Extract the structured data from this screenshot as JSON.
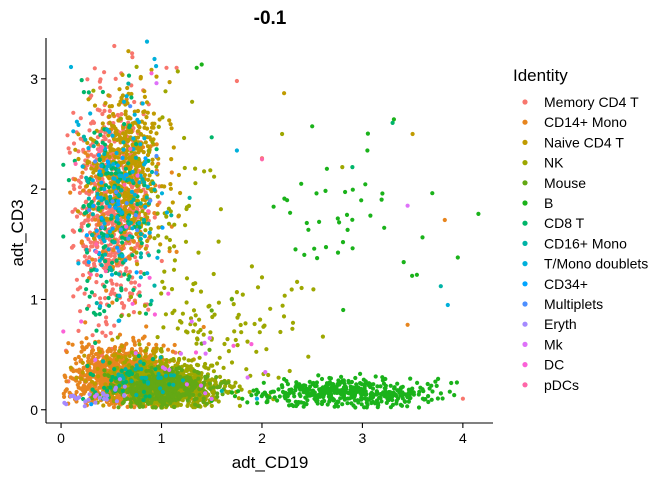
{
  "chart_data": {
    "type": "scatter",
    "title": "-0.1",
    "xlabel": "adt_CD19",
    "ylabel": "adt_CD3",
    "xlim": [
      -0.15,
      4.3
    ],
    "ylim": [
      -0.12,
      3.37
    ],
    "x_ticks": [
      "0",
      "1",
      "2",
      "3",
      "4"
    ],
    "y_ticks": [
      "0",
      "1",
      "2",
      "3"
    ],
    "grid": false,
    "legend_title": "Identity",
    "legend_position": "right",
    "series": [
      {
        "name": "Memory CD4 T",
        "color": "#F8766D",
        "clusters": [
          {
            "cx": 0.5,
            "cy": 1.85,
            "sx": 0.18,
            "sy": 0.45,
            "n": 700
          },
          {
            "cx": 0.55,
            "cy": 0.35,
            "sx": 0.25,
            "sy": 0.15,
            "n": 40
          }
        ],
        "extra": [
          [
            0.6,
            3.05
          ],
          [
            1.15,
            3.1
          ],
          [
            1.05,
            3.1
          ],
          [
            1.75,
            2.98
          ],
          [
            2.0,
            2.28
          ],
          [
            4.0,
            0.1
          ]
        ]
      },
      {
        "name": "CD14+ Mono",
        "color": "#E7851E",
        "clusters": [
          {
            "cx": 0.58,
            "cy": 0.3,
            "sx": 0.22,
            "sy": 0.14,
            "n": 900
          },
          {
            "cx": 0.6,
            "cy": 1.9,
            "sx": 0.2,
            "sy": 0.35,
            "n": 120
          }
        ],
        "extra": [
          [
            3.82,
            1.72
          ],
          [
            3.45,
            0.77
          ],
          [
            1.42,
            0.75
          ]
        ]
      },
      {
        "name": "Naive CD4 T",
        "color": "#C09B00",
        "clusters": [
          {
            "cx": 0.65,
            "cy": 2.2,
            "sx": 0.18,
            "sy": 0.35,
            "n": 450
          },
          {
            "cx": 0.7,
            "cy": 0.35,
            "sx": 0.25,
            "sy": 0.12,
            "n": 120
          }
        ],
        "extra": [
          [
            0.67,
            3.25
          ],
          [
            0.95,
            3.02
          ],
          [
            1.08,
            2.97
          ],
          [
            3.5,
            2.5
          ],
          [
            2.22,
            2.87
          ]
        ]
      },
      {
        "name": "NK",
        "color": "#9DA700",
        "clusters": [
          {
            "cx": 1.1,
            "cy": 0.22,
            "sx": 0.25,
            "sy": 0.1,
            "n": 700
          },
          {
            "cx": 1.45,
            "cy": 0.7,
            "sx": 0.45,
            "sy": 0.35,
            "n": 130
          },
          {
            "cx": 1.05,
            "cy": 1.9,
            "sx": 0.25,
            "sy": 0.5,
            "n": 60
          }
        ],
        "extra": [
          [
            2.2,
            2.5
          ],
          [
            2.8,
            2.2
          ],
          [
            1.9,
            1.3
          ],
          [
            2.0,
            1.2
          ]
        ]
      },
      {
        "name": "Mouse",
        "color": "#63A814",
        "clusters": [
          {
            "cx": 1.0,
            "cy": 0.2,
            "sx": 0.25,
            "sy": 0.08,
            "n": 500
          }
        ],
        "extra": [
          [
            1.4,
            0.6
          ],
          [
            1.7,
            1.0
          ],
          [
            1.5,
            0.9
          ],
          [
            0.6,
            0.85
          ],
          [
            0.9,
            0.1
          ]
        ]
      },
      {
        "name": "B",
        "color": "#1AB21A",
        "clusters": [
          {
            "cx": 2.85,
            "cy": 0.15,
            "sx": 0.45,
            "sy": 0.06,
            "n": 450
          },
          {
            "cx": 2.9,
            "cy": 1.75,
            "sx": 0.4,
            "sy": 0.4,
            "n": 40
          }
        ],
        "extra": [
          [
            1.4,
            3.13
          ],
          [
            1.35,
            3.1
          ],
          [
            2.5,
            2.57
          ],
          [
            3.05,
            2.35
          ],
          [
            3.95,
            1.38
          ],
          [
            2.25,
            1.9
          ]
        ]
      },
      {
        "name": "CD8 T",
        "color": "#00B56A",
        "clusters": [
          {
            "cx": 0.5,
            "cy": 1.75,
            "sx": 0.18,
            "sy": 0.45,
            "n": 160
          },
          {
            "cx": 0.6,
            "cy": 0.25,
            "sx": 0.2,
            "sy": 0.1,
            "n": 40
          }
        ],
        "extra": [
          [
            3.3,
            2.6
          ],
          [
            2.9,
            2.2
          ],
          [
            1.5,
            2.47
          ]
        ]
      },
      {
        "name": "CD16+ Mono",
        "color": "#00B3A6",
        "clusters": [
          {
            "cx": 0.65,
            "cy": 1.8,
            "sx": 0.25,
            "sy": 0.45,
            "n": 70
          },
          {
            "cx": 0.8,
            "cy": 0.3,
            "sx": 0.25,
            "sy": 0.12,
            "n": 30
          }
        ],
        "extra": [
          [
            3.78,
            1.12
          ],
          [
            1.6,
            0.17
          ]
        ]
      },
      {
        "name": "T/Mono doublets",
        "color": "#00B0DB",
        "clusters": [
          {
            "cx": 0.6,
            "cy": 2.0,
            "sx": 0.25,
            "sy": 0.45,
            "n": 80
          }
        ],
        "extra": [
          [
            0.93,
            3.18
          ],
          [
            1.75,
            2.35
          ],
          [
            3.85,
            0.95
          ],
          [
            1.95,
            0.1
          ]
        ]
      },
      {
        "name": "CD34+",
        "color": "#00A5FF",
        "clusters": [
          {
            "cx": 0.55,
            "cy": 1.8,
            "sx": 0.2,
            "sy": 0.4,
            "n": 25
          }
        ],
        "extra": [
          [
            0.3,
            0.05
          ]
        ]
      },
      {
        "name": "Multiplets",
        "color": "#4C8FFF",
        "clusters": [
          {
            "cx": 0.6,
            "cy": 1.9,
            "sx": 0.2,
            "sy": 0.35,
            "n": 15
          }
        ],
        "extra": [
          [
            0.95,
            2.3
          ]
        ]
      },
      {
        "name": "Eryth",
        "color": "#A58AFF",
        "clusters": [
          {
            "cx": 0.35,
            "cy": 0.12,
            "sx": 0.15,
            "sy": 0.06,
            "n": 25
          }
        ],
        "extra": [
          [
            0.05,
            0.05
          ],
          [
            0.15,
            0.1
          ]
        ]
      },
      {
        "name": "Mk",
        "color": "#DE71F9",
        "clusters": [
          {
            "cx": 1.1,
            "cy": 0.35,
            "sx": 0.4,
            "sy": 0.2,
            "n": 15
          }
        ],
        "extra": [
          [
            0.95,
            2.96
          ],
          [
            3.45,
            1.85
          ],
          [
            1.48,
            0.65
          ],
          [
            1.3,
            0.8
          ]
        ]
      },
      {
        "name": "DC",
        "color": "#FB61D7",
        "clusters": [
          {
            "cx": 0.9,
            "cy": 0.9,
            "sx": 0.4,
            "sy": 0.5,
            "n": 10
          }
        ],
        "extra": [
          [
            0.2,
            0.8
          ],
          [
            0.9,
            3.05
          ]
        ]
      },
      {
        "name": "pDCs",
        "color": "#FF66A8",
        "clusters": [
          {
            "cx": 0.5,
            "cy": 1.7,
            "sx": 0.2,
            "sy": 0.4,
            "n": 10
          }
        ],
        "extra": [
          [
            2.0,
            2.27
          ],
          [
            0.35,
            1.5
          ]
        ]
      }
    ]
  }
}
